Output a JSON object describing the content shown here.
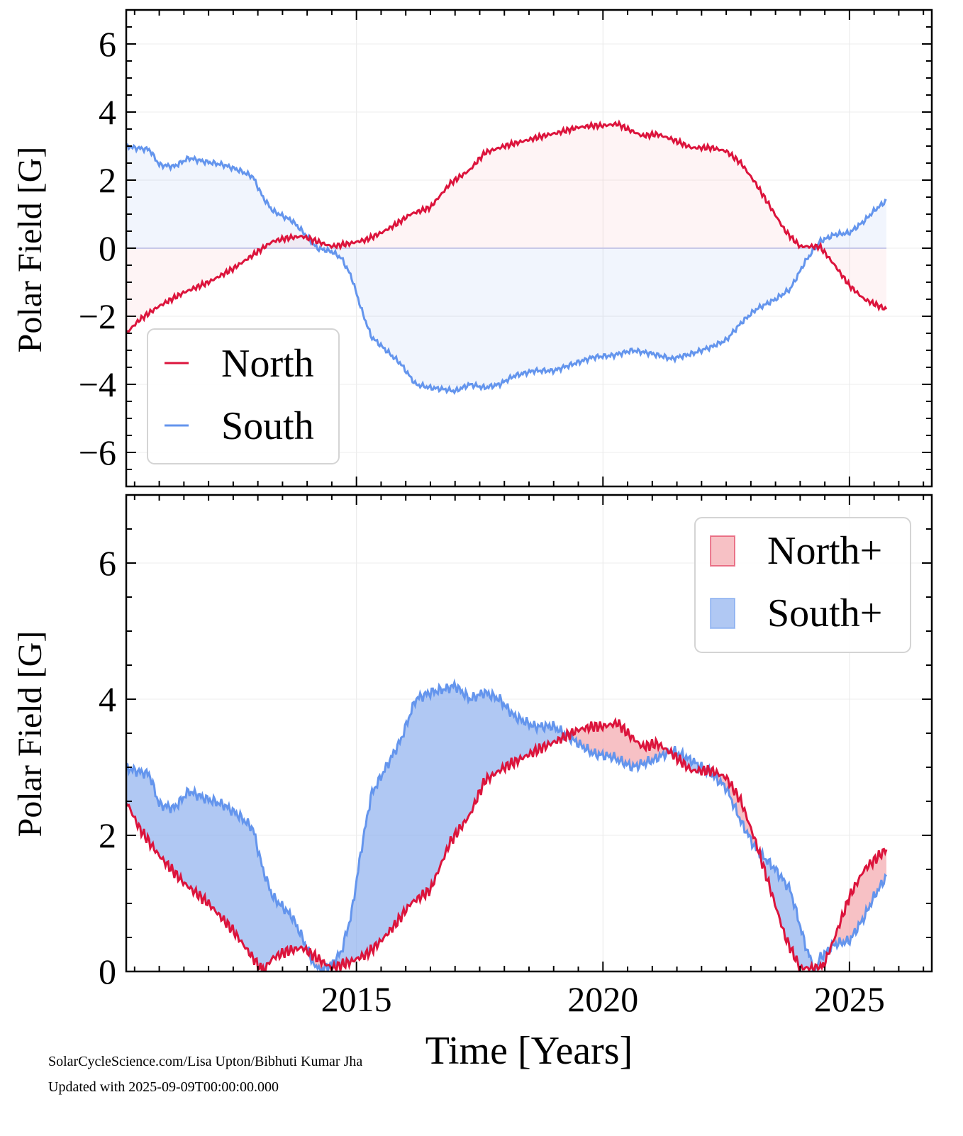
{
  "footer": {
    "credit": "SolarCycleScience.com/Lisa Upton/Bibhuti Kumar Jha",
    "updated": "Updated with 2025-09-09T00:00:00.000"
  },
  "colors": {
    "north": "#dc143c",
    "south": "#6495ed",
    "north_fill": "#f4a6ad",
    "south_fill": "#8fb0ee"
  },
  "chart_data": [
    {
      "type": "line",
      "panel": "top",
      "xlabel": "",
      "ylabel": "Polar Field [G]",
      "xlim": [
        2010.33,
        2026.67
      ],
      "ylim": [
        -7,
        7
      ],
      "yticks": [
        -6,
        -4,
        -2,
        0,
        2,
        4,
        6
      ],
      "ytick_labels": [
        "−6",
        "−4",
        "−2",
        "0",
        "2",
        "4",
        "6"
      ],
      "grid": true,
      "fill_between_zero": true,
      "legend": {
        "placement": "lower-left",
        "entries": [
          "North",
          "South"
        ]
      },
      "series": [
        {
          "name": "North",
          "color": "#dc143c",
          "x": [
            2010.33,
            2010.6,
            2011.0,
            2011.5,
            2012.0,
            2012.5,
            2013.0,
            2013.3,
            2013.6,
            2013.9,
            2014.2,
            2014.5,
            2014.9,
            2015.2,
            2015.5,
            2015.8,
            2016.1,
            2016.5,
            2016.9,
            2017.3,
            2017.6,
            2018.0,
            2018.4,
            2018.8,
            2019.1,
            2019.5,
            2019.8,
            2020.0,
            2020.3,
            2020.5,
            2020.8,
            2021.1,
            2021.4,
            2021.8,
            2022.2,
            2022.5,
            2022.8,
            2023.1,
            2023.4,
            2023.7,
            2024.0,
            2024.4,
            2024.7,
            2025.0,
            2025.3,
            2025.6,
            2025.75
          ],
          "y": [
            -2.5,
            -2.1,
            -1.7,
            -1.3,
            -1.0,
            -0.6,
            -0.1,
            0.2,
            0.3,
            0.35,
            0.2,
            0.05,
            0.15,
            0.25,
            0.45,
            0.7,
            1.0,
            1.2,
            1.9,
            2.3,
            2.8,
            3.0,
            3.15,
            3.3,
            3.4,
            3.55,
            3.6,
            3.6,
            3.65,
            3.5,
            3.3,
            3.35,
            3.2,
            2.95,
            2.95,
            2.85,
            2.5,
            1.9,
            1.2,
            0.5,
            0.05,
            0.05,
            -0.5,
            -1.1,
            -1.5,
            -1.7,
            -1.8
          ]
        },
        {
          "name": "South",
          "color": "#6495ed",
          "x": [
            2010.33,
            2010.5,
            2010.8,
            2011.0,
            2011.3,
            2011.6,
            2011.9,
            2012.3,
            2012.6,
            2012.9,
            2013.1,
            2013.3,
            2013.7,
            2013.9,
            2014.2,
            2014.5,
            2014.7,
            2014.9,
            2015.1,
            2015.3,
            2015.6,
            2015.9,
            2016.2,
            2016.5,
            2016.8,
            2017.0,
            2017.3,
            2017.6,
            2017.9,
            2018.2,
            2018.6,
            2019.0,
            2019.4,
            2019.8,
            2020.2,
            2020.6,
            2021.0,
            2021.4,
            2021.8,
            2022.2,
            2022.5,
            2022.8,
            2023.1,
            2023.5,
            2023.8,
            2024.1,
            2024.4,
            2024.7,
            2025.0,
            2025.3,
            2025.5,
            2025.75
          ],
          "y": [
            3.0,
            2.95,
            2.9,
            2.45,
            2.4,
            2.65,
            2.55,
            2.45,
            2.3,
            2.1,
            1.5,
            1.1,
            0.8,
            0.5,
            0.0,
            -0.1,
            -0.3,
            -0.85,
            -1.8,
            -2.6,
            -3.0,
            -3.4,
            -4.0,
            -4.1,
            -4.15,
            -4.2,
            -4.0,
            -4.1,
            -4.0,
            -3.75,
            -3.6,
            -3.6,
            -3.4,
            -3.2,
            -3.15,
            -3.0,
            -3.1,
            -3.25,
            -3.1,
            -2.9,
            -2.7,
            -2.2,
            -1.8,
            -1.5,
            -1.2,
            -0.4,
            0.2,
            0.4,
            0.45,
            0.8,
            1.1,
            1.4
          ]
        }
      ]
    },
    {
      "type": "area",
      "panel": "bottom",
      "xlabel": "Time [Years]",
      "ylabel": "Polar Field [G]",
      "xlim": [
        2010.33,
        2026.67
      ],
      "ylim": [
        0,
        7
      ],
      "yticks": [
        0,
        2,
        4,
        6
      ],
      "ytick_labels": [
        "0",
        "2",
        "4",
        "6"
      ],
      "xticks": [
        2015,
        2020,
        2025
      ],
      "xtick_labels": [
        "2015",
        "2020",
        "2025"
      ],
      "grid": true,
      "note": "absolute values |North| and |South|; band filled with North+ color where |North| > |South| and South+ color where |South| > |North|",
      "legend": {
        "placement": "top-right",
        "entries": [
          "North+",
          "South+"
        ]
      }
    }
  ]
}
